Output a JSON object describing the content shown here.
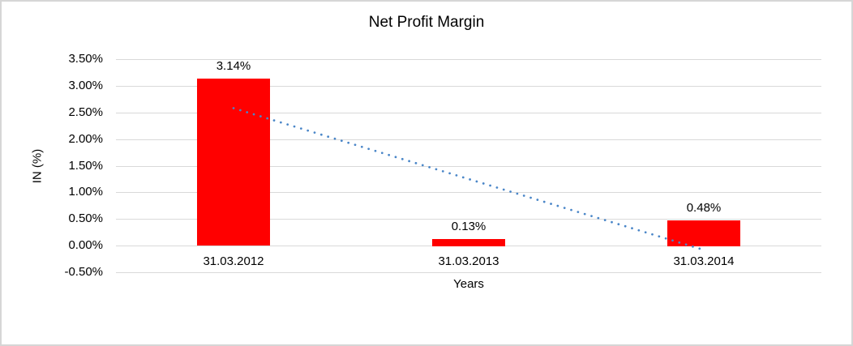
{
  "window": {
    "background": "#FFFFFF",
    "border_color": "#D6D6D6"
  },
  "chart_data": {
    "type": "bar",
    "title": "Net Profit Margin",
    "xlabel": "Years",
    "ylabel": "IN (%)",
    "categories": [
      "31.03.2012",
      "31.03.2013",
      "31.03.2014"
    ],
    "values": [
      3.14,
      0.13,
      0.48
    ],
    "value_labels": [
      "3.14%",
      "0.13%",
      "0.48%"
    ],
    "ylim": [
      -0.5,
      3.5
    ],
    "yticks": [
      {
        "value": 3.5,
        "label": "3.50%"
      },
      {
        "value": 3.0,
        "label": "3.00%"
      },
      {
        "value": 2.5,
        "label": "2.50%"
      },
      {
        "value": 2.0,
        "label": "2.00%"
      },
      {
        "value": 1.5,
        "label": "1.50%"
      },
      {
        "value": 1.0,
        "label": "1.00%"
      },
      {
        "value": 0.5,
        "label": "0.50%"
      },
      {
        "value": 0.0,
        "label": "0.00%"
      },
      {
        "value": -0.5,
        "label": "-0.50%"
      }
    ],
    "grid": true,
    "legend": "none",
    "bar_color": "#FF0000",
    "gridline_color": "#D9D9D9",
    "text_color": "#000000",
    "trendline": {
      "type": "linear",
      "style": "dotted",
      "color": "#4A86C8",
      "start_value": 2.58,
      "end_value": -0.08
    }
  }
}
